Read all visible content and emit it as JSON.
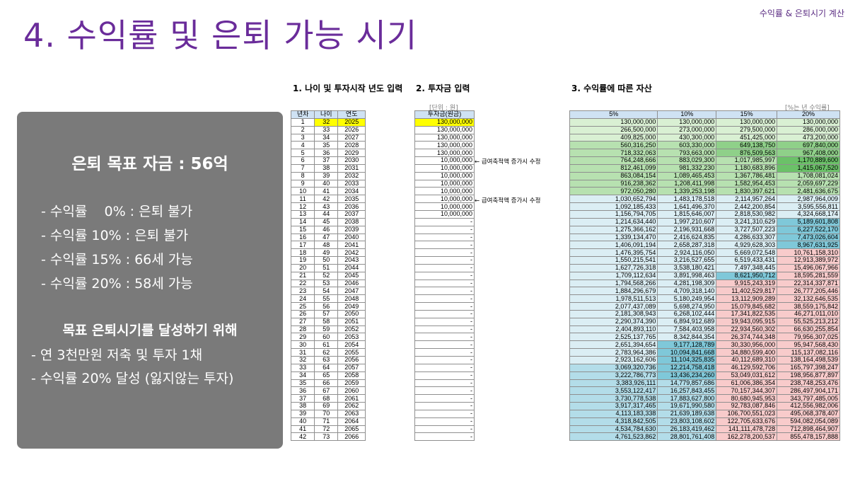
{
  "header": {
    "top_right": "수익률 & 은퇴시기 계산",
    "title": "4. 수익률 및 은퇴 가능 시기"
  },
  "summary": {
    "heading": "은퇴 목표 자금 : 56억",
    "rates": [
      "- 수익률    0% : 은퇴 불가",
      "- 수익률 10% : 은퇴 불가",
      "- 수익률 15% : 66세 가능",
      "- 수익률 20% : 58세 가능"
    ],
    "goal_heading": "목표 은퇴시기를 달성하기 위해",
    "goal_lines": [
      "- 연 3천만원 저축 및 투자 1채",
      "- 수익률 20% 달성 (잃지않는 투자)"
    ]
  },
  "sections": {
    "s1": "1. 나이 및 투자시작 년도 입력",
    "s2": "2. 투자금 입력",
    "s3": "3. 수익률에 따른 자산",
    "unit_left": "[단위 : 원]",
    "unit_right": "[%는 년 수익률]",
    "note": "← 급여축적액 증가시 수정"
  },
  "colors": {
    "title": "#6a2c9a",
    "summary_bg": "#7a7a7a",
    "input_yellow": "#ffff00",
    "header_blue": "#cfe2f3",
    "green_1": "#d9f0d3",
    "green_2": "#b7e1b0",
    "green_3": "#8fd089",
    "green_4": "#6bc168",
    "teal_light": "#dbeef4",
    "teal_mid": "#b3dde9",
    "teal_dark": "#7fc8d9",
    "pink": "#f8cbcb"
  },
  "table1": {
    "headers": [
      "년차",
      "나이",
      "연도"
    ],
    "rows": [
      [
        "1",
        "32",
        "2025"
      ],
      [
        "2",
        "33",
        "2026"
      ],
      [
        "3",
        "34",
        "2027"
      ],
      [
        "4",
        "35",
        "2028"
      ],
      [
        "5",
        "36",
        "2029"
      ],
      [
        "6",
        "37",
        "2030"
      ],
      [
        "7",
        "38",
        "2031"
      ],
      [
        "8",
        "39",
        "2032"
      ],
      [
        "9",
        "40",
        "2033"
      ],
      [
        "10",
        "41",
        "2034"
      ],
      [
        "11",
        "42",
        "2035"
      ],
      [
        "12",
        "43",
        "2036"
      ],
      [
        "13",
        "44",
        "2037"
      ],
      [
        "14",
        "45",
        "2038"
      ],
      [
        "15",
        "46",
        "2039"
      ],
      [
        "16",
        "47",
        "2040"
      ],
      [
        "17",
        "48",
        "2041"
      ],
      [
        "18",
        "49",
        "2042"
      ],
      [
        "19",
        "50",
        "2043"
      ],
      [
        "20",
        "51",
        "2044"
      ],
      [
        "21",
        "52",
        "2045"
      ],
      [
        "22",
        "53",
        "2046"
      ],
      [
        "23",
        "54",
        "2047"
      ],
      [
        "24",
        "55",
        "2048"
      ],
      [
        "25",
        "56",
        "2049"
      ],
      [
        "26",
        "57",
        "2050"
      ],
      [
        "27",
        "58",
        "2051"
      ],
      [
        "28",
        "59",
        "2052"
      ],
      [
        "29",
        "60",
        "2053"
      ],
      [
        "30",
        "61",
        "2054"
      ],
      [
        "31",
        "62",
        "2055"
      ],
      [
        "32",
        "63",
        "2056"
      ],
      [
        "33",
        "64",
        "2057"
      ],
      [
        "34",
        "65",
        "2058"
      ],
      [
        "35",
        "66",
        "2059"
      ],
      [
        "36",
        "67",
        "2060"
      ],
      [
        "37",
        "68",
        "2061"
      ],
      [
        "38",
        "69",
        "2062"
      ],
      [
        "39",
        "70",
        "2063"
      ],
      [
        "40",
        "71",
        "2064"
      ],
      [
        "41",
        "72",
        "2065"
      ],
      [
        "42",
        "73",
        "2066"
      ]
    ]
  },
  "table2": {
    "header": "투자금(원금)",
    "values": [
      "130,000,000",
      "130,000,000",
      "130,000,000",
      "130,000,000",
      "130,000,000",
      "10,000,000",
      "10,000,000",
      "10,000,000",
      "10,000,000",
      "10,000,000",
      "10,000,000",
      "10,000,000",
      "10,000,000",
      "-",
      "-",
      "-",
      "-",
      "-",
      "-",
      "-",
      "-",
      "-",
      "-",
      "-",
      "-",
      "-",
      "-",
      "-",
      "-",
      "-",
      "-",
      "-",
      "-",
      "-",
      "-",
      "-",
      "-",
      "-",
      "-",
      "-",
      "-",
      "-"
    ]
  },
  "table3": {
    "headers": [
      "5%",
      "10%",
      "15%",
      "20%"
    ],
    "rows": [
      [
        "130,000,000",
        "130,000,000",
        "130,000,000",
        "130,000,000"
      ],
      [
        "266,500,000",
        "273,000,000",
        "279,500,000",
        "286,000,000"
      ],
      [
        "409,825,000",
        "430,300,000",
        "451,425,000",
        "473,200,000"
      ],
      [
        "560,316,250",
        "603,330,000",
        "649,138,750",
        "697,840,000"
      ],
      [
        "718,332,063",
        "793,663,000",
        "876,509,563",
        "967,408,000"
      ],
      [
        "764,248,666",
        "883,029,300",
        "1,017,985,997",
        "1,170,889,600"
      ],
      [
        "812,461,099",
        "981,332,230",
        "1,180,683,896",
        "1,415,067,520"
      ],
      [
        "863,084,154",
        "1,089,465,453",
        "1,367,786,481",
        "1,708,081,024"
      ],
      [
        "916,238,362",
        "1,208,411,998",
        "1,582,954,453",
        "2,059,697,229"
      ],
      [
        "972,050,280",
        "1,339,253,198",
        "1,830,397,621",
        "2,481,636,675"
      ],
      [
        "1,030,652,794",
        "1,483,178,518",
        "2,114,957,264",
        "2,987,964,009"
      ],
      [
        "1,092,185,433",
        "1,641,496,370",
        "2,442,200,854",
        "3,595,556,811"
      ],
      [
        "1,156,794,705",
        "1,815,646,007",
        "2,818,530,982",
        "4,324,668,174"
      ],
      [
        "1,214,634,440",
        "1,997,210,607",
        "3,241,310,629",
        "5,189,601,808"
      ],
      [
        "1,275,366,162",
        "2,196,931,668",
        "3,727,507,223",
        "6,227,522,170"
      ],
      [
        "1,339,134,470",
        "2,416,624,835",
        "4,286,633,307",
        "7,473,026,604"
      ],
      [
        "1,406,091,194",
        "2,658,287,318",
        "4,929,628,303",
        "8,967,631,925"
      ],
      [
        "1,476,395,754",
        "2,924,116,050",
        "5,669,072,548",
        "10,761,158,310"
      ],
      [
        "1,550,215,541",
        "3,216,527,655",
        "6,519,433,431",
        "12,913,389,972"
      ],
      [
        "1,627,726,318",
        "3,538,180,421",
        "7,497,348,445",
        "15,496,067,966"
      ],
      [
        "1,709,112,634",
        "3,891,998,463",
        "8,621,950,712",
        "18,595,281,559"
      ],
      [
        "1,794,568,266",
        "4,281,198,309",
        "9,915,243,319",
        "22,314,337,871"
      ],
      [
        "1,884,296,679",
        "4,709,318,140",
        "11,402,529,817",
        "26,777,205,446"
      ],
      [
        "1,978,511,513",
        "5,180,249,954",
        "13,112,909,289",
        "32,132,646,535"
      ],
      [
        "2,077,437,089",
        "5,698,274,950",
        "15,079,845,682",
        "38,559,175,842"
      ],
      [
        "2,181,308,943",
        "6,268,102,444",
        "17,341,822,535",
        "46,271,011,010"
      ],
      [
        "2,290,374,390",
        "6,894,912,689",
        "19,943,095,915",
        "55,525,213,212"
      ],
      [
        "2,404,893,110",
        "7,584,403,958",
        "22,934,560,302",
        "66,630,255,854"
      ],
      [
        "2,525,137,765",
        "8,342,844,354",
        "26,374,744,348",
        "79,956,307,025"
      ],
      [
        "2,651,394,654",
        "9,177,128,789",
        "30,330,956,000",
        "95,947,568,430"
      ],
      [
        "2,783,964,386",
        "10,094,841,668",
        "34,880,599,400",
        "115,137,082,116"
      ],
      [
        "2,923,162,606",
        "11,104,325,835",
        "40,112,689,310",
        "138,164,498,539"
      ],
      [
        "3,069,320,736",
        "12,214,758,418",
        "46,129,592,706",
        "165,797,398,247"
      ],
      [
        "3,222,786,773",
        "13,436,234,260",
        "53,049,031,612",
        "198,956,877,897"
      ],
      [
        "3,383,926,111",
        "14,779,857,686",
        "61,006,386,354",
        "238,748,253,476"
      ],
      [
        "3,553,122,417",
        "16,257,843,455",
        "70,157,344,307",
        "286,497,904,171"
      ],
      [
        "3,730,778,538",
        "17,883,627,800",
        "80,680,945,953",
        "343,797,485,005"
      ],
      [
        "3,917,317,465",
        "19,671,990,580",
        "92,783,087,846",
        "412,556,982,006"
      ],
      [
        "4,113,183,338",
        "21,639,189,638",
        "106,700,551,023",
        "495,068,378,407"
      ],
      [
        "4,318,842,505",
        "23,803,108,602",
        "122,705,633,676",
        "594,082,054,089"
      ],
      [
        "4,534,784,630",
        "26,183,419,462",
        "141,111,478,728",
        "712,898,464,907"
      ],
      [
        "4,761,523,862",
        "28,801,761,408",
        "162,278,200,537",
        "855,478,157,888"
      ]
    ]
  }
}
